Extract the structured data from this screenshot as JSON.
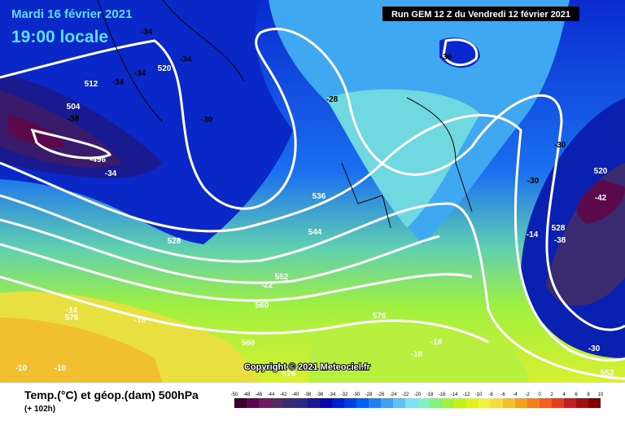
{
  "header": {
    "date": "Mardi 16 février 2021",
    "time": "19:00 locale",
    "run": "Run GEM 12 Z du Vendredi 12 février 2021"
  },
  "copyright": "Copyright © 2021 Meteociel.fr",
  "footer": {
    "title": "Temp.(°C) et géop.(dam) 500hPa",
    "lead": "(+ 102h)"
  },
  "legend": {
    "labels": [
      -50,
      -48,
      -46,
      -44,
      -42,
      -40,
      -38,
      -36,
      -34,
      -32,
      -30,
      -28,
      -26,
      -24,
      -22,
      -20,
      -18,
      -16,
      -14,
      -12,
      -10,
      -8,
      -6,
      -4,
      -2,
      0,
      2,
      4,
      6,
      8,
      10
    ]
  },
  "map_labels": [
    -34,
    -34,
    520,
    -34,
    -34,
    512,
    504,
    -38,
    -30,
    -28,
    -30,
    -30,
    520,
    -42,
    -30,
    528,
    -14,
    -38,
    -496,
    -34,
    536,
    544,
    528,
    552,
    -22,
    560,
    576,
    -18,
    -14,
    576,
    568,
    -18,
    -18,
    -10,
    -10,
    576,
    -30,
    552
  ]
}
